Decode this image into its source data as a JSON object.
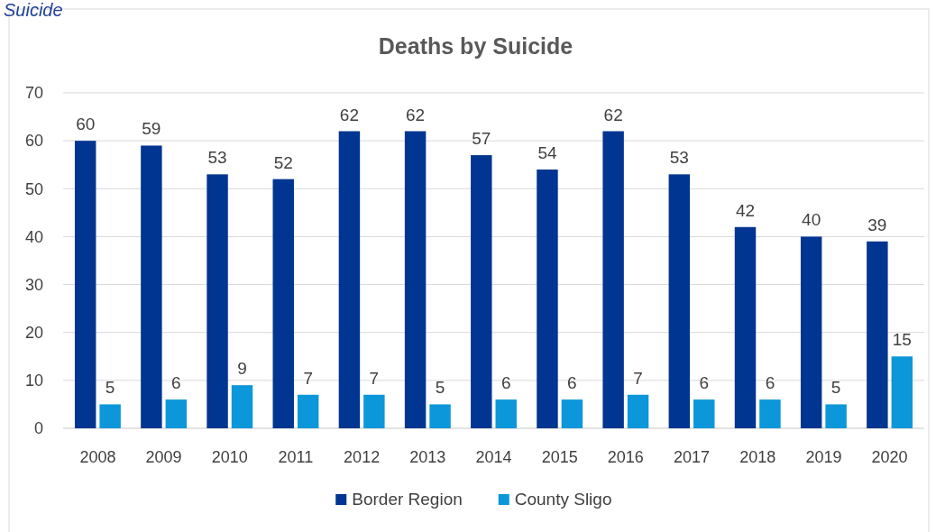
{
  "chart_data": {
    "type": "bar",
    "title": "Deaths by Suicide",
    "annotations": [
      "Suicide"
    ],
    "categories": [
      "2008",
      "2009",
      "2010",
      "2011",
      "2012",
      "2013",
      "2014",
      "2015",
      "2016",
      "2017",
      "2018",
      "2019",
      "2020"
    ],
    "series": [
      {
        "name": "Border Region",
        "color": "#003591",
        "values": [
          60,
          59,
          53,
          52,
          62,
          62,
          57,
          54,
          62,
          53,
          42,
          40,
          39
        ]
      },
      {
        "name": "County Sligo",
        "color": "#0b97d9",
        "values": [
          5,
          6,
          9,
          7,
          7,
          5,
          6,
          6,
          7,
          6,
          6,
          5,
          15
        ]
      }
    ],
    "ylim": [
      0,
      70
    ],
    "yticks": [
      0,
      10,
      20,
      30,
      40,
      50,
      60,
      70
    ],
    "grid": "y",
    "legend": "bottom",
    "data_labels": true
  }
}
